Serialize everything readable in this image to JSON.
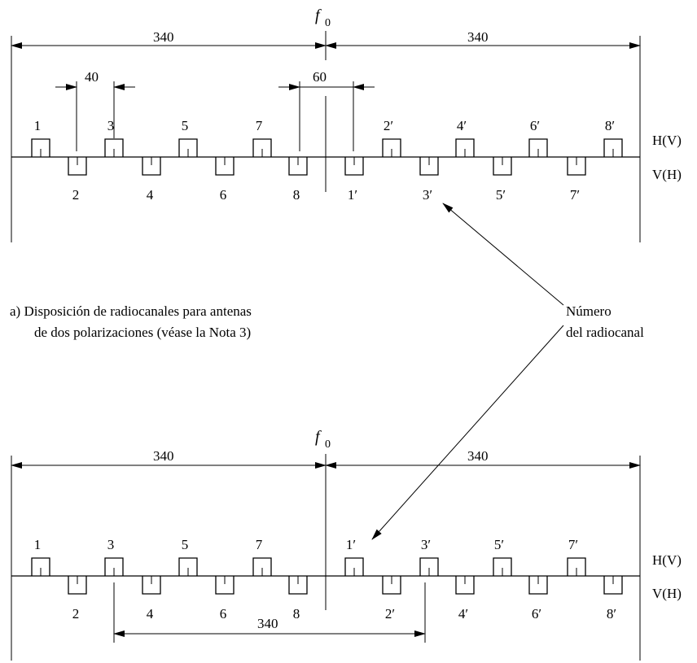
{
  "diagram_a": {
    "f0_main": "f",
    "f0_sub": "0",
    "dim_left": "340",
    "dim_right": "340",
    "dim_spacing": "40",
    "dim_center_gap": "60",
    "pol_upper": "H(V)",
    "pol_lower": "V(H)",
    "channels_up": [
      "1",
      "3",
      "5",
      "7",
      "2′",
      "4′",
      "6′",
      "8′"
    ],
    "channels_down": [
      "2",
      "4",
      "6",
      "8",
      "1′",
      "3′",
      "5′",
      "7′"
    ]
  },
  "caption_a": {
    "line1": "a)  Disposición de radiocanales para antenas",
    "line2": "de dos polarizaciones (véase la Nota 3)"
  },
  "callout": {
    "line1": "Número",
    "line2": "del radiocanal"
  },
  "diagram_b": {
    "f0_main": "f",
    "f0_sub": "0",
    "dim_left": "340",
    "dim_right": "340",
    "dim_bottom": "340",
    "pol_upper": "H(V)",
    "pol_lower": "V(H)",
    "channels_up": [
      "1",
      "3",
      "5",
      "7",
      "1′",
      "3′",
      "5′",
      "7′"
    ],
    "channels_down": [
      "2",
      "4",
      "6",
      "8",
      "2′",
      "4′",
      "6′",
      "8′"
    ]
  }
}
